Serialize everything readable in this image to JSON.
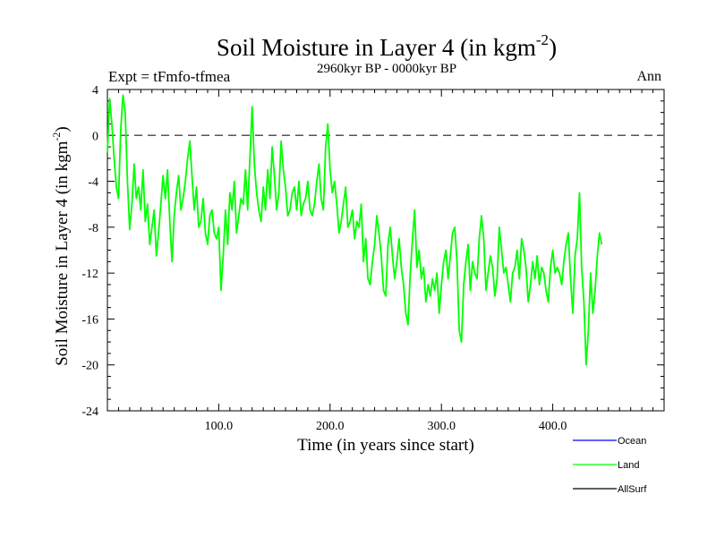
{
  "chart_data": {
    "type": "line",
    "title": "Soil Moisture in Layer 4 (in kgm",
    "title_superscript": "-2",
    "title_suffix": ")",
    "subtitle_left": "Expt = tFmfo-tfmea",
    "subtitle_center": "2960kyr BP - 0000kyr BP",
    "subtitle_right": "Ann",
    "xlabel": "Time (in years since start)",
    "ylabel": "Soil Moisture in Layer 4 (in kgm",
    "ylabel_superscript": "-2",
    "ylabel_suffix": ")",
    "xlim": [
      0,
      500
    ],
    "ylim": [
      -24,
      4
    ],
    "xticks": [
      100,
      200,
      300,
      400
    ],
    "xtick_labels": [
      "100.0",
      "200.0",
      "300.0",
      "400.0"
    ],
    "yticks": [
      4,
      0,
      -4,
      -8,
      -12,
      -16,
      -20,
      -24
    ],
    "ytick_labels": [
      "4",
      "0",
      "-4",
      "-8",
      "-12",
      "-16",
      "-20",
      "-24"
    ],
    "reference_line": 0,
    "legend": [
      {
        "name": "Ocean",
        "color": "#0000ff"
      },
      {
        "name": "Land",
        "color": "#00ff00"
      },
      {
        "name": "AllSurf",
        "color": "#000000"
      }
    ],
    "series": [
      {
        "name": "Land",
        "color": "#00ff00",
        "x_start": 0,
        "x_step": 2,
        "values": [
          -1.5,
          3.2,
          1.0,
          -2.0,
          -4.5,
          -5.5,
          0.5,
          3.5,
          2.0,
          -4.0,
          -8.2,
          -6.0,
          -2.5,
          -5.5,
          -4.5,
          -6.5,
          -3.0,
          -7.5,
          -6.0,
          -9.5,
          -8.0,
          -6.5,
          -10.5,
          -8.5,
          -6.0,
          -3.5,
          -5.5,
          -3.0,
          -7.5,
          -11.0,
          -7.0,
          -5.0,
          -3.5,
          -6.5,
          -5.5,
          -4.0,
          -2.0,
          -0.5,
          -3.5,
          -6.5,
          -4.5,
          -8.0,
          -7.5,
          -5.5,
          -8.5,
          -9.5,
          -7.0,
          -6.5,
          -8.5,
          -9.0,
          -8.0,
          -13.5,
          -10.5,
          -6.5,
          -9.5,
          -5.0,
          -6.5,
          -4.0,
          -8.5,
          -7.0,
          -5.5,
          -6.0,
          -3.0,
          -6.5,
          -2.0,
          2.5,
          -2.5,
          -5.0,
          -6.5,
          -7.5,
          -4.5,
          -6.5,
          -3.0,
          -5.5,
          -1.0,
          -3.5,
          -6.5,
          -5.0,
          -0.5,
          -3.0,
          -4.5,
          -7.0,
          -6.5,
          -5.0,
          -4.5,
          -6.5,
          -4.0,
          -7.0,
          -6.0,
          -5.5,
          -4.0,
          -6.5,
          -7.0,
          -6.0,
          -4.0,
          -2.5,
          -5.5,
          -6.5,
          -1.0,
          1.0,
          -3.0,
          -5.0,
          -4.0,
          -6.0,
          -8.5,
          -7.5,
          -6.0,
          -4.5,
          -8.0,
          -7.5,
          -6.5,
          -9.0,
          -7.5,
          -8.0,
          -6.0,
          -11.0,
          -9.0,
          -12.5,
          -13.0,
          -11.0,
          -9.5,
          -7.0,
          -8.5,
          -10.5,
          -13.5,
          -14.0,
          -9.5,
          -8.0,
          -10.5,
          -12.5,
          -11.0,
          -9.0,
          -11.5,
          -13.0,
          -15.5,
          -16.5,
          -12.0,
          -9.0,
          -6.5,
          -11.5,
          -10.0,
          -12.5,
          -11.5,
          -14.5,
          -13.0,
          -14.0,
          -12.5,
          -13.5,
          -12.0,
          -15.5,
          -13.0,
          -11.0,
          -10.0,
          -12.5,
          -10.5,
          -8.5,
          -8.0,
          -11.0,
          -17.0,
          -18.0,
          -13.0,
          -11.0,
          -9.5,
          -13.5,
          -11.0,
          -12.0,
          -12.5,
          -9.0,
          -7.0,
          -9.0,
          -13.5,
          -12.0,
          -10.5,
          -11.5,
          -14.0,
          -12.5,
          -8.0,
          -10.0,
          -12.0,
          -11.5,
          -13.0,
          -14.5,
          -12.0,
          -11.5,
          -10.0,
          -12.5,
          -9.0,
          -10.0,
          -11.5,
          -14.5,
          -13.0,
          -11.0,
          -12.5,
          -10.5,
          -13.0,
          -11.5,
          -12.0,
          -13.5,
          -14.5,
          -11.5,
          -10.0,
          -12.0,
          -11.5,
          -12.0,
          -13.0,
          -11.0,
          -9.5,
          -8.5,
          -12.5,
          -15.5,
          -10.5,
          -9.0,
          -5.0,
          -11.5,
          -14.5,
          -20.0,
          -17.0,
          -12.0,
          -15.5,
          -13.5,
          -10.5,
          -8.5,
          -9.5
        ]
      }
    ]
  }
}
